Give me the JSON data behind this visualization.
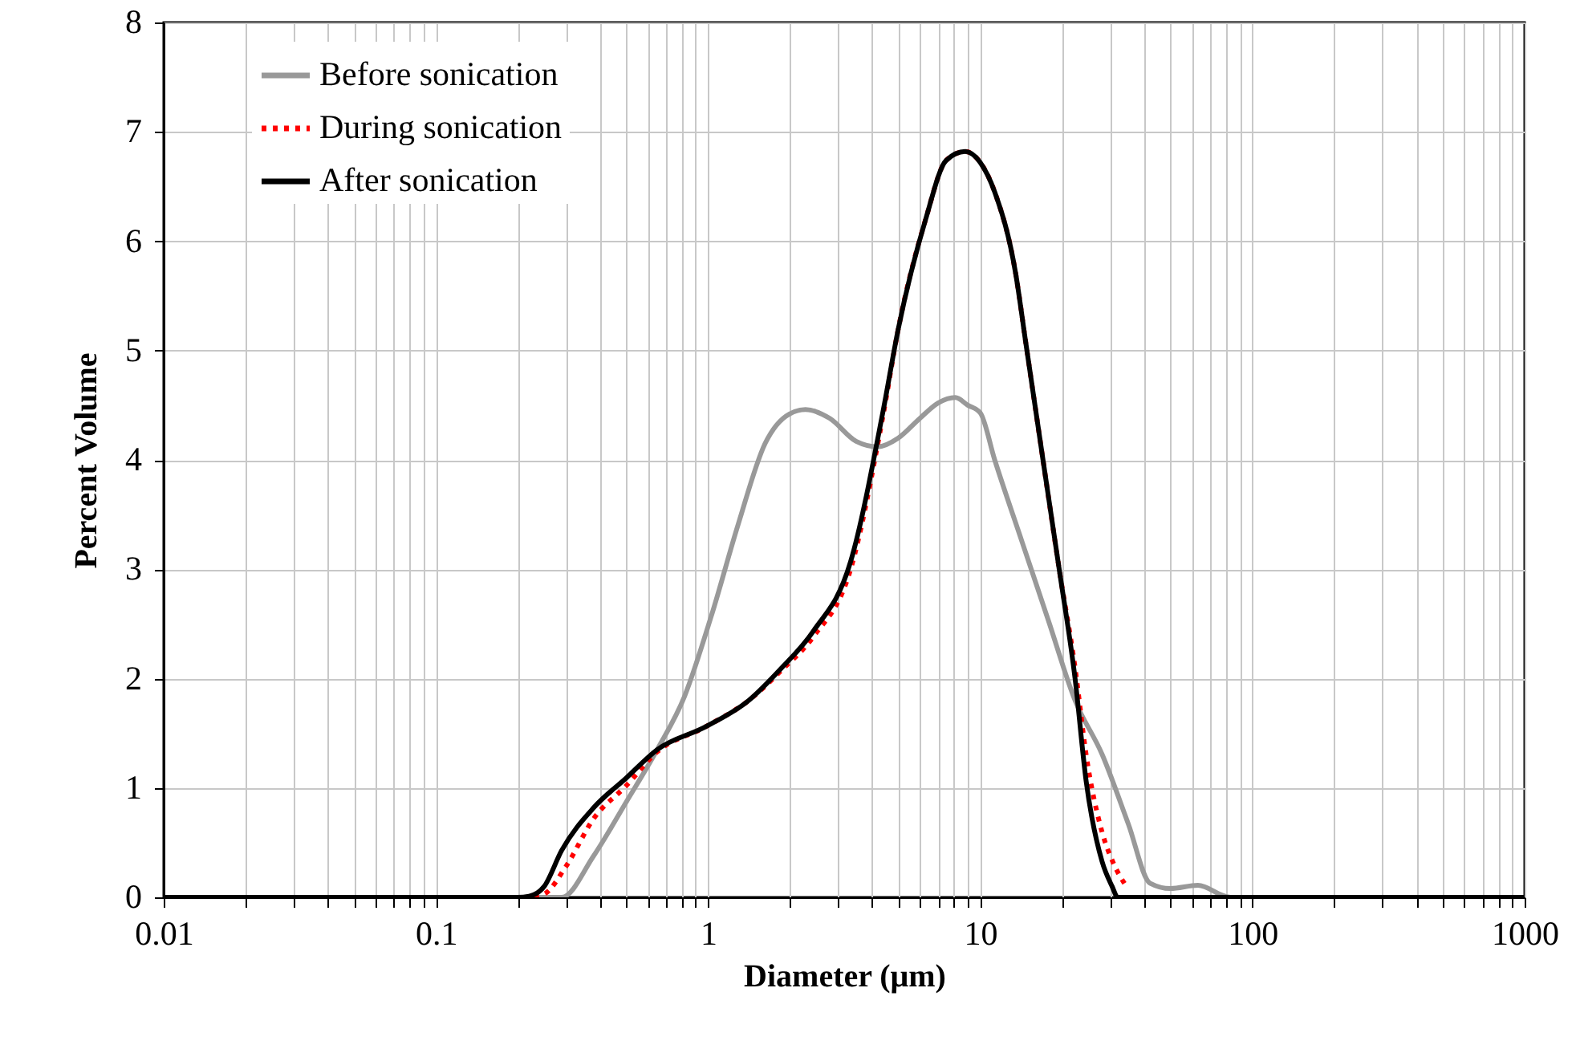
{
  "chart_data": {
    "type": "line",
    "xlabel": "Diameter (μm)",
    "ylabel": "Percent Volume",
    "log": "x",
    "grid": true,
    "legend": "top left",
    "xlim": [
      0.01,
      1000
    ],
    "ylim": [
      0,
      8
    ],
    "yticks": [
      0,
      1,
      2,
      3,
      4,
      5,
      6,
      7,
      8
    ],
    "xticks": [
      0.01,
      {
        "value": 0.02,
        "label": null
      },
      {
        "value": 0.03,
        "label": null
      },
      {
        "value": 0.04,
        "label": null
      },
      {
        "value": 0.05,
        "label": null
      },
      {
        "value": 0.06,
        "label": null
      },
      {
        "value": 0.07,
        "label": null
      },
      {
        "value": 0.08,
        "label": null
      },
      {
        "value": 0.09,
        "label": null
      },
      0.1,
      {
        "value": 0.2,
        "label": null
      },
      {
        "value": 0.3,
        "label": null
      },
      {
        "value": 0.4,
        "label": null
      },
      {
        "value": 0.5,
        "label": null
      },
      {
        "value": 0.6,
        "label": null
      },
      {
        "value": 0.7,
        "label": null
      },
      {
        "value": 0.8,
        "label": null
      },
      {
        "value": 0.9,
        "label": null
      },
      1,
      {
        "value": 2,
        "label": null
      },
      {
        "value": 3,
        "label": null
      },
      {
        "value": 4,
        "label": null
      },
      {
        "value": 5,
        "label": null
      },
      {
        "value": 6,
        "label": null
      },
      {
        "value": 7,
        "label": null
      },
      {
        "value": 8,
        "label": null
      },
      {
        "value": 9,
        "label": null
      },
      10,
      {
        "value": 20,
        "label": null
      },
      {
        "value": 30,
        "label": null
      },
      {
        "value": 40,
        "label": null
      },
      {
        "value": 50,
        "label": null
      },
      {
        "value": 60,
        "label": null
      },
      {
        "value": 70,
        "label": null
      },
      {
        "value": 80,
        "label": null
      },
      {
        "value": 90,
        "label": null
      },
      100,
      {
        "value": 200,
        "label": null
      },
      {
        "value": 300,
        "label": null
      },
      {
        "value": 400,
        "label": null
      },
      {
        "value": 500,
        "label": null
      },
      {
        "value": 600,
        "label": null
      },
      {
        "value": 700,
        "label": null
      },
      {
        "value": 800,
        "label": null
      },
      {
        "value": 900,
        "label": null
      },
      1000
    ],
    "series": [
      {
        "name": "Before sonication",
        "color": "#999999",
        "line_style": "solid",
        "x": [
          0.01,
          0.1,
          0.2,
          0.29,
          0.38,
          0.5,
          0.65,
          0.82,
          1.03,
          1.29,
          1.62,
          1.99,
          2.28,
          2.8,
          3.5,
          4.2,
          5,
          6,
          7,
          8.1,
          9,
          10,
          11.3,
          14.2,
          17.8,
          22.3,
          28,
          35,
          42,
          50,
          63,
          83,
          100,
          1000
        ],
        "values": [
          0,
          0,
          0,
          0,
          0.38,
          0.87,
          1.35,
          1.84,
          2.58,
          3.41,
          4.15,
          4.42,
          4.46,
          4.38,
          4.17,
          4.12,
          4.2,
          4.38,
          4.52,
          4.57,
          4.5,
          4.43,
          4.0,
          3.26,
          2.53,
          1.8,
          1.31,
          0.67,
          0.13,
          0.08,
          0.11,
          0,
          0,
          0
        ]
      },
      {
        "name": "During sonication",
        "color": "#ff0000",
        "line_style": "dotted",
        "x": [
          0.01,
          0.1,
          0.22,
          0.25,
          0.3,
          0.38,
          0.5,
          0.65,
          0.98,
          1.41,
          1.85,
          2.43,
          3.34,
          4.39,
          5,
          6.3,
          7.5,
          8.8,
          10,
          11.3,
          13.5,
          14.7,
          17,
          19.5,
          22.3,
          24.5,
          28,
          31,
          34
        ],
        "values": [
          0,
          0,
          0,
          0.03,
          0.28,
          0.72,
          1.02,
          1.33,
          1.56,
          1.8,
          2.07,
          2.38,
          3.0,
          4.4,
          5.2,
          6.2,
          6.74,
          6.82,
          6.72,
          6.45,
          5.7,
          5.07,
          4.0,
          3.0,
          2.1,
          1.3,
          0.6,
          0.3,
          0.12
        ]
      },
      {
        "name": "After sonication",
        "color": "#000000",
        "line_style": "solid",
        "x": [
          0.01,
          0.1,
          0.2,
          0.22,
          0.25,
          0.29,
          0.38,
          0.5,
          0.65,
          0.98,
          1.41,
          1.85,
          2.43,
          3.34,
          4.39,
          5,
          6.3,
          7.5,
          8.8,
          10,
          11.3,
          13.5,
          14.7,
          17,
          19.5,
          22.3,
          24.5,
          28,
          30.5,
          32,
          40,
          100,
          1000
        ],
        "values": [
          0,
          0,
          0,
          0.01,
          0.1,
          0.43,
          0.82,
          1.09,
          1.35,
          1.56,
          1.8,
          2.09,
          2.43,
          3.07,
          4.44,
          5.2,
          6.2,
          6.74,
          6.82,
          6.72,
          6.45,
          5.7,
          5.07,
          4.0,
          3.0,
          2.0,
          1.06,
          0.33,
          0.1,
          0,
          0,
          0,
          0
        ]
      }
    ]
  }
}
